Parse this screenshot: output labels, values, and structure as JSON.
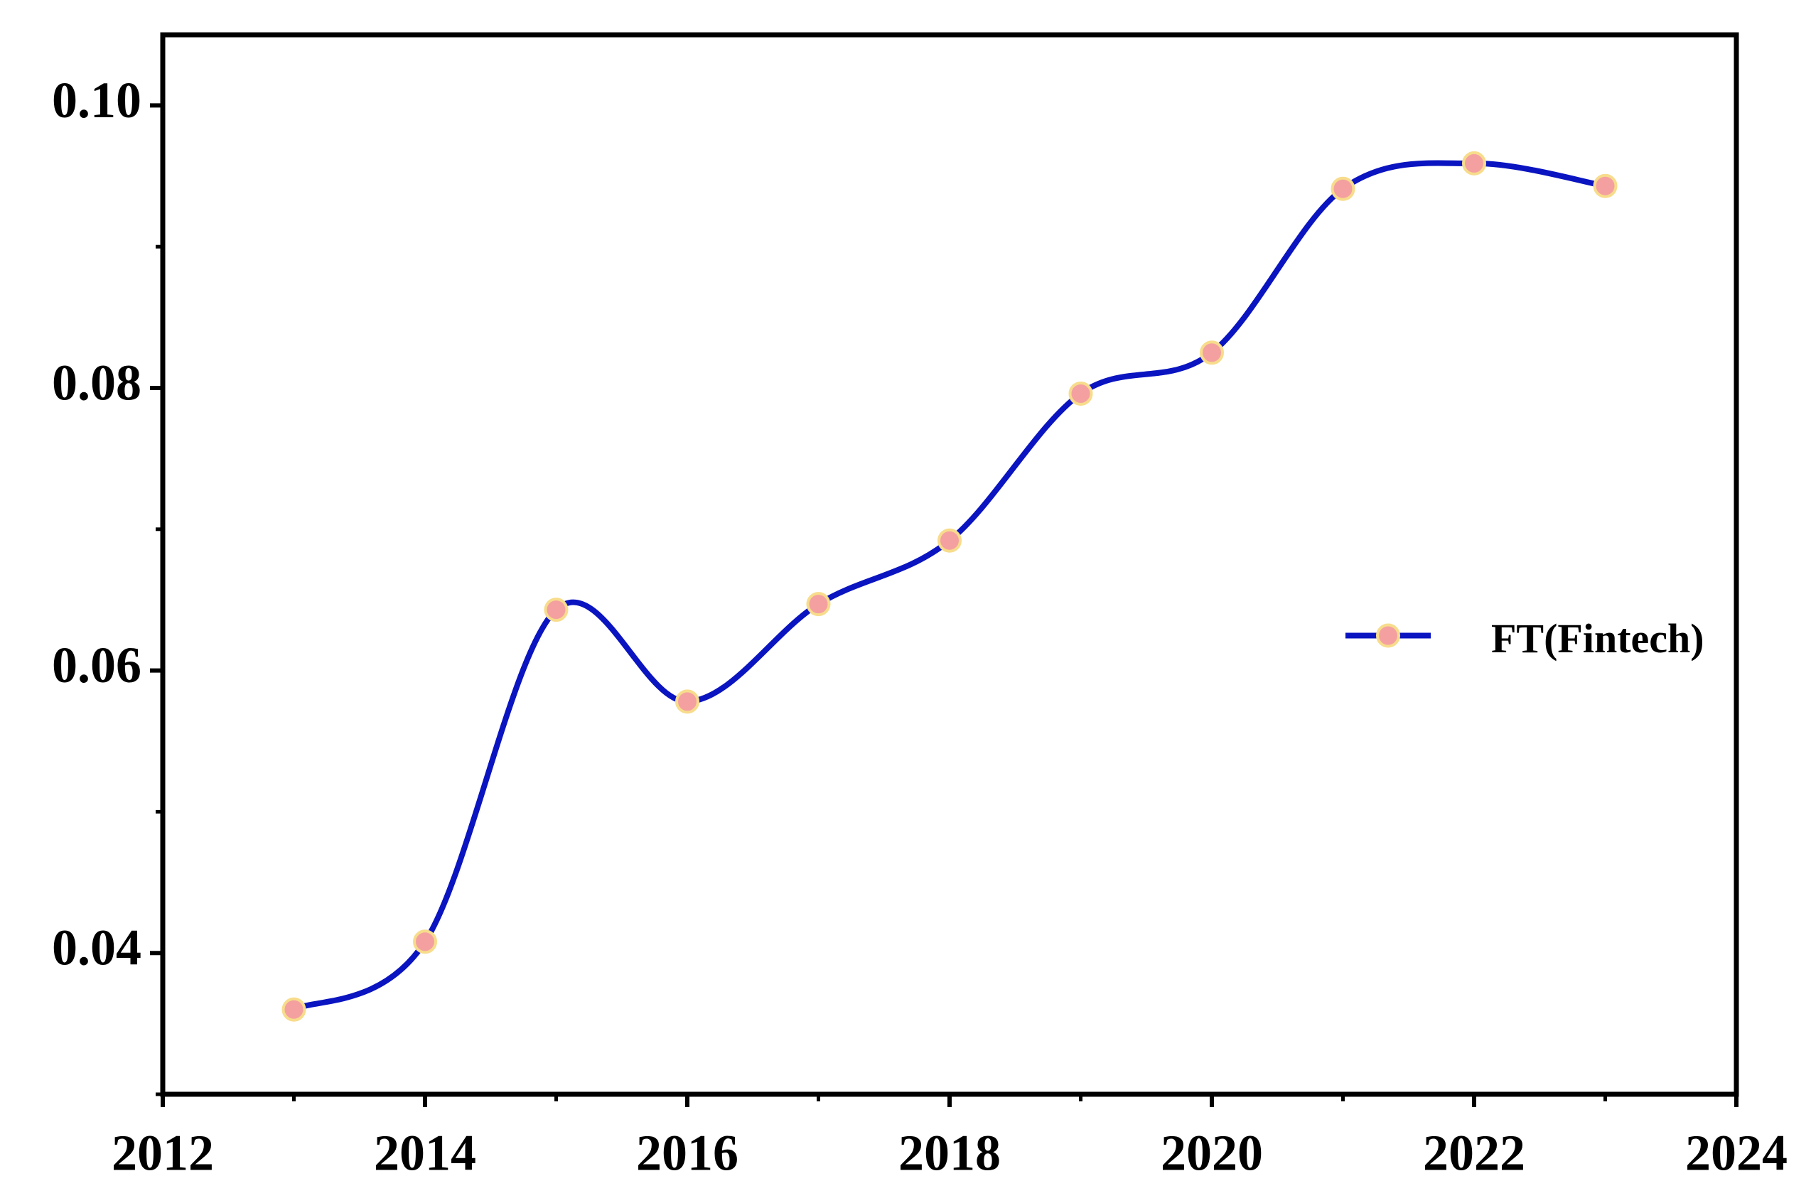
{
  "chart_data": {
    "type": "line",
    "x": [
      2013,
      2014,
      2015,
      2016,
      2017,
      2018,
      2019,
      2020,
      2021,
      2022,
      2023
    ],
    "series": [
      {
        "name": "FT(Fintech)",
        "color": "#0a14c0",
        "marker_color": "#f4a0a0",
        "marker_edge": "#f7dc8c",
        "values": [
          0.036,
          0.0408,
          0.0643,
          0.0578,
          0.0647,
          0.0692,
          0.0796,
          0.0825,
          0.0941,
          0.0959,
          0.0943
        ]
      }
    ],
    "xlim": [
      2012,
      2024
    ],
    "xticks": [
      2012,
      2014,
      2016,
      2018,
      2020,
      2022,
      2024
    ],
    "ylim": [
      0.03,
      0.105
    ],
    "yticks": [
      {
        "value": 0.04,
        "label": "0.04"
      },
      {
        "value": 0.06,
        "label": "0.06"
      },
      {
        "value": 0.08,
        "label": "0.08"
      },
      {
        "value": 0.1,
        "label": "0.10"
      }
    ],
    "smooth": true,
    "grid": false,
    "legend_loc": "center right"
  }
}
